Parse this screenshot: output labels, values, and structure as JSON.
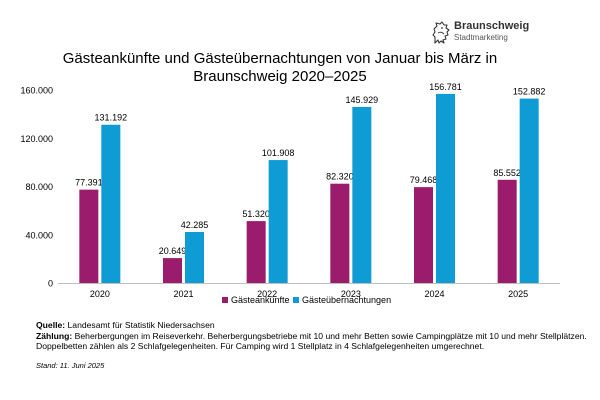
{
  "logo": {
    "name": "Braunschweig",
    "subtitle": "Stadtmarketing",
    "icon": "braunschweig-lion-icon"
  },
  "chart_data": {
    "type": "bar",
    "title": "Gästeankünfte und Gästeübernachtungen von Januar bis März in Braunschweig 2020–2025",
    "xlabel": "",
    "ylabel": "",
    "categories": [
      "2020",
      "2021",
      "2022",
      "2023",
      "2024",
      "2025"
    ],
    "series": [
      {
        "name": "Gästeankünfte",
        "color": "#9b1b6c",
        "values": [
          77391,
          20649,
          51320,
          82320,
          79468,
          85552
        ],
        "labels": [
          "77.391",
          "20.649",
          "51.320",
          "82.320",
          "79.468",
          "85.552"
        ]
      },
      {
        "name": "Gästeübernachtungen",
        "color": "#0f9bd3",
        "values": [
          131192,
          42285,
          101908,
          145929,
          156781,
          152882
        ],
        "labels": [
          "131.192",
          "42.285",
          "101.908",
          "145.929",
          "156.781",
          "152.882"
        ]
      }
    ],
    "ylim": [
      0,
      160000
    ],
    "yticks": [
      0,
      40000,
      80000,
      120000,
      160000
    ],
    "ytick_labels": [
      "0",
      "40.000",
      "80.000",
      "120.000",
      "160.000"
    ],
    "grid": false,
    "legend_position": "bottom-center"
  },
  "footnotes": {
    "quelle_label": "Quelle:",
    "quelle_text": "Landesamt für Statistik Niedersachsen",
    "zaehlung_label": "Zählung:",
    "zaehlung_text": "Beherbergungen im Reiseverkehr. Beherbergungsbetriebe mit 10 und mehr Betten sowie Campingplätze mit 10 und mehr Stellplätzen. Doppelbetten zählen als 2 Schlafgelegenheiten. Für Camping wird 1 Stellplatz in 4 Schlafgelegenheiten umgerechnet.",
    "stand": "Stand: 11. Juni 2025"
  }
}
